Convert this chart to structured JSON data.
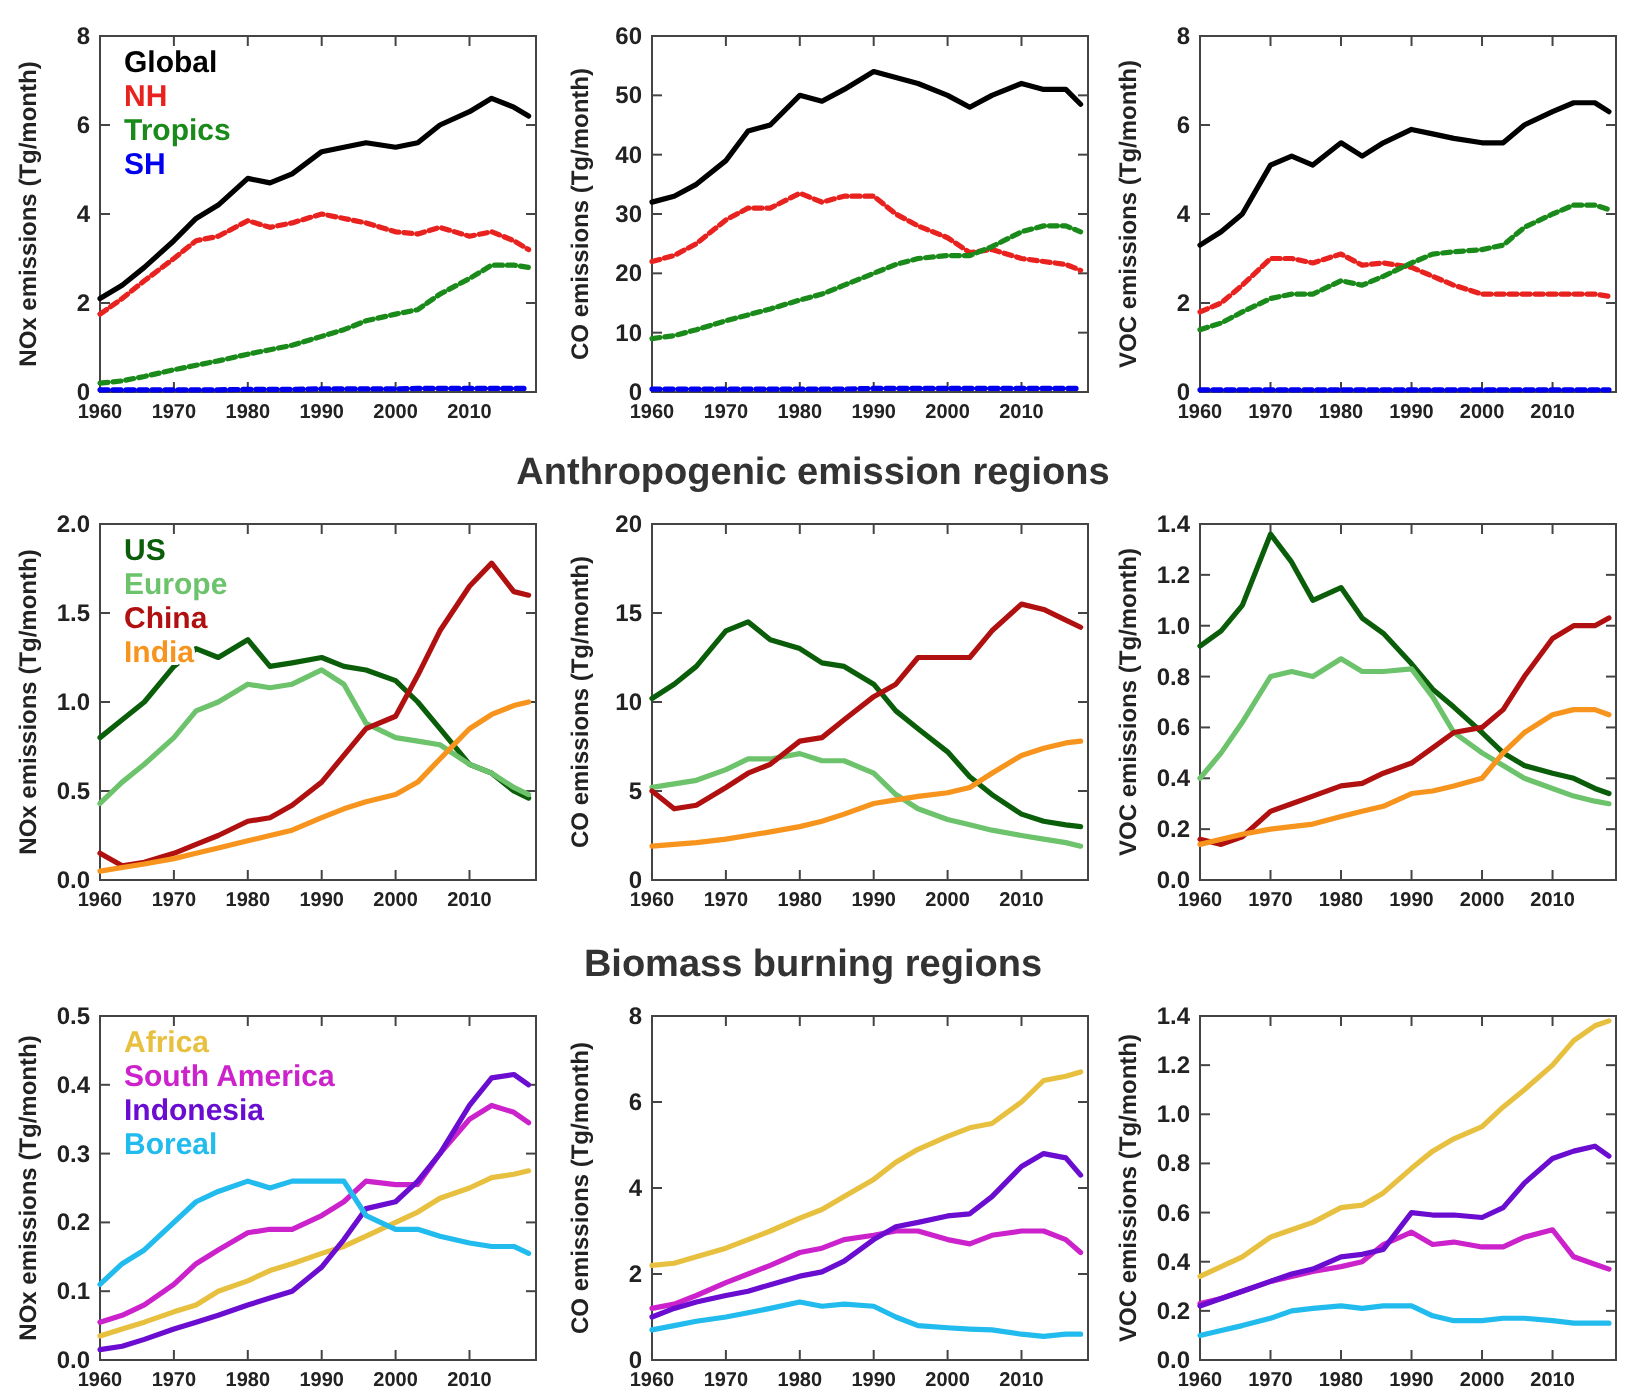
{
  "chart_data": [
    {
      "type": "line",
      "ylabel": "NOx emissions (Tg/month)",
      "x": [
        1960,
        1963,
        1966,
        1970,
        1973,
        1976,
        1980,
        1983,
        1986,
        1990,
        1993,
        1996,
        2000,
        2003,
        2006,
        2010,
        2013,
        2016,
        2018
      ],
      "xlim": [
        1960,
        2019
      ],
      "xticks": [
        1960,
        1970,
        1980,
        1990,
        2000,
        2010
      ],
      "ylim": [
        0,
        8
      ],
      "yticks": [
        0,
        2,
        4,
        6,
        8
      ],
      "legend": "top left",
      "series": [
        {
          "name": "Global",
          "color": "#000000",
          "values": [
            2.1,
            2.4,
            2.8,
            3.4,
            3.9,
            4.2,
            4.8,
            4.7,
            4.9,
            5.4,
            5.5,
            5.6,
            5.5,
            5.6,
            6.0,
            6.3,
            6.6,
            6.4,
            6.2
          ]
        },
        {
          "name": "NH",
          "color": "#e8221f",
          "line_style": "dashed",
          "values": [
            1.75,
            2.1,
            2.5,
            3.0,
            3.4,
            3.5,
            3.85,
            3.7,
            3.8,
            4.0,
            3.9,
            3.8,
            3.6,
            3.55,
            3.7,
            3.5,
            3.6,
            3.4,
            3.2
          ]
        },
        {
          "name": "Tropics",
          "color": "#1a8a1a",
          "line_style": "dashed",
          "values": [
            0.2,
            0.25,
            0.35,
            0.5,
            0.6,
            0.7,
            0.85,
            0.95,
            1.05,
            1.25,
            1.4,
            1.6,
            1.75,
            1.85,
            2.2,
            2.55,
            2.85,
            2.85,
            2.8
          ]
        },
        {
          "name": "SH",
          "color": "#0000ee",
          "line_style": "dashed",
          "values": [
            0.05,
            0.05,
            0.05,
            0.05,
            0.05,
            0.05,
            0.06,
            0.06,
            0.06,
            0.07,
            0.07,
            0.07,
            0.07,
            0.08,
            0.08,
            0.08,
            0.08,
            0.08,
            0.08
          ]
        }
      ]
    },
    {
      "type": "line",
      "ylabel": "CO emissions (Tg/month)",
      "x": [
        1960,
        1963,
        1966,
        1970,
        1973,
        1976,
        1980,
        1983,
        1986,
        1990,
        1993,
        1996,
        2000,
        2003,
        2006,
        2010,
        2013,
        2016,
        2018
      ],
      "xlim": [
        1960,
        2019
      ],
      "xticks": [
        1960,
        1970,
        1980,
        1990,
        2000,
        2010
      ],
      "ylim": [
        0,
        60
      ],
      "yticks": [
        0,
        10,
        20,
        30,
        40,
        50,
        60
      ],
      "series": [
        {
          "color": "#000000",
          "values": [
            32,
            33,
            35,
            39,
            44,
            45,
            50,
            49,
            51,
            54,
            53,
            52,
            50,
            48,
            50,
            52,
            51,
            51,
            48.5
          ]
        },
        {
          "color": "#e8221f",
          "line_style": "dashed",
          "values": [
            22,
            23,
            25,
            29,
            31,
            31,
            33.5,
            32,
            33,
            33,
            30,
            28,
            26,
            23.5,
            24,
            22.5,
            22,
            21.5,
            20.5
          ]
        },
        {
          "color": "#1a8a1a",
          "line_style": "dashed",
          "values": [
            9,
            9.5,
            10.5,
            12,
            13,
            14,
            15.5,
            16.5,
            18,
            20,
            21.5,
            22.5,
            23,
            23,
            24.5,
            27,
            28,
            28,
            27
          ]
        },
        {
          "color": "#0000ee",
          "line_style": "dashed",
          "values": [
            0.5,
            0.5,
            0.5,
            0.5,
            0.5,
            0.5,
            0.5,
            0.5,
            0.5,
            0.6,
            0.6,
            0.6,
            0.6,
            0.6,
            0.6,
            0.6,
            0.6,
            0.6,
            0.6
          ]
        }
      ]
    },
    {
      "type": "line",
      "ylabel": "VOC emissions (Tg/month)",
      "x": [
        1960,
        1963,
        1966,
        1970,
        1973,
        1976,
        1980,
        1983,
        1986,
        1990,
        1993,
        1996,
        2000,
        2003,
        2006,
        2010,
        2013,
        2016,
        2018
      ],
      "xlim": [
        1960,
        2019
      ],
      "xticks": [
        1960,
        1970,
        1980,
        1990,
        2000,
        2010
      ],
      "ylim": [
        0,
        8
      ],
      "yticks": [
        0,
        2,
        4,
        6,
        8
      ],
      "series": [
        {
          "color": "#000000",
          "values": [
            3.3,
            3.6,
            4.0,
            5.1,
            5.3,
            5.1,
            5.6,
            5.3,
            5.6,
            5.9,
            5.8,
            5.7,
            5.6,
            5.6,
            6.0,
            6.3,
            6.5,
            6.5,
            6.3
          ]
        },
        {
          "color": "#e8221f",
          "line_style": "dashed",
          "values": [
            1.8,
            2.0,
            2.4,
            3.0,
            3.0,
            2.9,
            3.1,
            2.85,
            2.9,
            2.8,
            2.6,
            2.4,
            2.2,
            2.2,
            2.2,
            2.2,
            2.2,
            2.2,
            2.15
          ]
        },
        {
          "color": "#1a8a1a",
          "line_style": "dashed",
          "values": [
            1.4,
            1.55,
            1.8,
            2.1,
            2.2,
            2.2,
            2.5,
            2.4,
            2.6,
            2.9,
            3.1,
            3.15,
            3.2,
            3.3,
            3.7,
            4.0,
            4.2,
            4.2,
            4.1
          ]
        },
        {
          "color": "#0000ee",
          "line_style": "dashed",
          "values": [
            0.05,
            0.05,
            0.05,
            0.05,
            0.05,
            0.05,
            0.05,
            0.05,
            0.05,
            0.05,
            0.05,
            0.05,
            0.05,
            0.05,
            0.05,
            0.05,
            0.05,
            0.05,
            0.05
          ]
        }
      ]
    },
    {
      "type": "line",
      "ylabel": "NOx emissions (Tg/month)",
      "x": [
        1960,
        1963,
        1966,
        1970,
        1973,
        1976,
        1980,
        1983,
        1986,
        1990,
        1993,
        1996,
        2000,
        2003,
        2006,
        2010,
        2013,
        2016,
        2018
      ],
      "xlim": [
        1960,
        2019
      ],
      "xticks": [
        1960,
        1970,
        1980,
        1990,
        2000,
        2010
      ],
      "ylim": [
        0,
        2
      ],
      "yticks": [
        {
          "value": 0,
          "label": "0.0"
        },
        {
          "value": 0.5,
          "label": "0.5"
        },
        {
          "value": 1,
          "label": "1.0"
        },
        {
          "value": 1.5,
          "label": "1.5"
        },
        {
          "value": 2,
          "label": "2.0"
        }
      ],
      "legend": "top left",
      "series": [
        {
          "name": "US",
          "color": "#0a5e0a",
          "values": [
            0.8,
            0.9,
            1.0,
            1.2,
            1.3,
            1.25,
            1.35,
            1.2,
            1.22,
            1.25,
            1.2,
            1.18,
            1.12,
            1.0,
            0.85,
            0.65,
            0.6,
            0.5,
            0.46
          ]
        },
        {
          "name": "Europe",
          "color": "#6cc36c",
          "values": [
            0.43,
            0.55,
            0.65,
            0.8,
            0.95,
            1.0,
            1.1,
            1.08,
            1.1,
            1.18,
            1.1,
            0.88,
            0.8,
            0.78,
            0.76,
            0.65,
            0.6,
            0.52,
            0.48
          ]
        },
        {
          "name": "China",
          "color": "#b01010",
          "values": [
            0.15,
            0.08,
            0.1,
            0.15,
            0.2,
            0.25,
            0.33,
            0.35,
            0.42,
            0.55,
            0.7,
            0.85,
            0.92,
            1.15,
            1.4,
            1.65,
            1.78,
            1.62,
            1.6
          ]
        },
        {
          "name": "India",
          "color": "#f7941d",
          "values": [
            0.05,
            0.07,
            0.09,
            0.12,
            0.15,
            0.18,
            0.22,
            0.25,
            0.28,
            0.35,
            0.4,
            0.44,
            0.48,
            0.55,
            0.68,
            0.85,
            0.93,
            0.98,
            1.0
          ]
        }
      ]
    },
    {
      "type": "line",
      "title": "Anthropogenic emission regions",
      "ylabel": "CO emissions (Tg/month)",
      "x": [
        1960,
        1963,
        1966,
        1970,
        1973,
        1976,
        1980,
        1983,
        1986,
        1990,
        1993,
        1996,
        2000,
        2003,
        2006,
        2010,
        2013,
        2016,
        2018
      ],
      "xlim": [
        1960,
        2019
      ],
      "xticks": [
        1960,
        1970,
        1980,
        1990,
        2000,
        2010
      ],
      "ylim": [
        0,
        20
      ],
      "yticks": [
        0,
        5,
        10,
        15,
        20
      ],
      "series": [
        {
          "color": "#0a5e0a",
          "values": [
            10.2,
            11,
            12,
            14,
            14.5,
            13.5,
            13,
            12.2,
            12,
            11,
            9.5,
            8.5,
            7.2,
            5.8,
            4.8,
            3.7,
            3.3,
            3.1,
            3.0
          ]
        },
        {
          "color": "#6cc36c",
          "values": [
            5.2,
            5.4,
            5.6,
            6.2,
            6.8,
            6.8,
            7.1,
            6.7,
            6.7,
            6.0,
            4.8,
            4.0,
            3.4,
            3.1,
            2.8,
            2.5,
            2.3,
            2.1,
            1.9
          ]
        },
        {
          "color": "#b01010",
          "values": [
            5,
            4,
            4.2,
            5.2,
            6,
            6.5,
            7.8,
            8,
            9,
            10.3,
            11,
            12.5,
            12.5,
            12.5,
            14,
            15.5,
            15.2,
            14.6,
            14.2
          ]
        },
        {
          "color": "#f7941d",
          "values": [
            1.9,
            2,
            2.1,
            2.3,
            2.5,
            2.7,
            3,
            3.3,
            3.7,
            4.3,
            4.5,
            4.7,
            4.9,
            5.2,
            6,
            7,
            7.4,
            7.7,
            7.8
          ]
        }
      ]
    },
    {
      "type": "line",
      "ylabel": "VOC emissions (Tg/month)",
      "x": [
        1960,
        1963,
        1966,
        1970,
        1973,
        1976,
        1980,
        1983,
        1986,
        1990,
        1993,
        1996,
        2000,
        2003,
        2006,
        2010,
        2013,
        2016,
        2018
      ],
      "xlim": [
        1960,
        2019
      ],
      "xticks": [
        1960,
        1970,
        1980,
        1990,
        2000,
        2010
      ],
      "ylim": [
        0,
        1.4
      ],
      "yticks": [
        {
          "value": 0,
          "label": "0.0"
        },
        {
          "value": 0.2,
          "label": "0.2"
        },
        {
          "value": 0.4,
          "label": "0.4"
        },
        {
          "value": 0.6,
          "label": "0.6"
        },
        {
          "value": 0.8,
          "label": "0.8"
        },
        {
          "value": 1,
          "label": "1.0"
        },
        {
          "value": 1.2,
          "label": "1.2"
        },
        {
          "value": 1.4,
          "label": "1.4"
        }
      ],
      "series": [
        {
          "color": "#0a5e0a",
          "values": [
            0.92,
            0.98,
            1.08,
            1.36,
            1.25,
            1.1,
            1.15,
            1.03,
            0.97,
            0.85,
            0.75,
            0.68,
            0.58,
            0.5,
            0.45,
            0.42,
            0.4,
            0.36,
            0.34
          ]
        },
        {
          "color": "#6cc36c",
          "values": [
            0.4,
            0.5,
            0.62,
            0.8,
            0.82,
            0.8,
            0.87,
            0.82,
            0.82,
            0.83,
            0.72,
            0.58,
            0.5,
            0.45,
            0.4,
            0.36,
            0.33,
            0.31,
            0.3
          ]
        },
        {
          "color": "#b01010",
          "values": [
            0.16,
            0.14,
            0.17,
            0.27,
            0.3,
            0.33,
            0.37,
            0.38,
            0.42,
            0.46,
            0.52,
            0.58,
            0.6,
            0.67,
            0.8,
            0.95,
            1.0,
            1.0,
            1.03
          ]
        },
        {
          "color": "#f7941d",
          "values": [
            0.14,
            0.16,
            0.18,
            0.2,
            0.21,
            0.22,
            0.25,
            0.27,
            0.29,
            0.34,
            0.35,
            0.37,
            0.4,
            0.5,
            0.58,
            0.65,
            0.67,
            0.67,
            0.65
          ]
        }
      ]
    },
    {
      "type": "line",
      "ylabel": "NOx emissions (Tg/month)",
      "x": [
        1960,
        1963,
        1966,
        1970,
        1973,
        1976,
        1980,
        1983,
        1986,
        1990,
        1993,
        1996,
        2000,
        2003,
        2006,
        2010,
        2013,
        2016,
        2018
      ],
      "xlim": [
        1960,
        2019
      ],
      "xticks": [
        1960,
        1970,
        1980,
        1990,
        2000,
        2010
      ],
      "ylim": [
        0,
        0.5
      ],
      "yticks": [
        {
          "value": 0,
          "label": "0.0"
        },
        0.1,
        0.2,
        0.3,
        0.4,
        0.5
      ],
      "legend": "top left",
      "series": [
        {
          "name": "Africa",
          "color": "#e8c040",
          "values": [
            0.035,
            0.045,
            0.055,
            0.07,
            0.08,
            0.1,
            0.115,
            0.13,
            0.14,
            0.155,
            0.165,
            0.18,
            0.2,
            0.215,
            0.235,
            0.25,
            0.265,
            0.27,
            0.275
          ]
        },
        {
          "name": "South America",
          "color": "#cc22cc",
          "values": [
            0.055,
            0.065,
            0.08,
            0.11,
            0.14,
            0.16,
            0.185,
            0.19,
            0.19,
            0.21,
            0.23,
            0.26,
            0.255,
            0.255,
            0.3,
            0.35,
            0.37,
            0.36,
            0.345
          ]
        },
        {
          "name": "Indonesia",
          "color": "#6a0dd0",
          "values": [
            0.015,
            0.02,
            0.03,
            0.045,
            0.055,
            0.065,
            0.08,
            0.09,
            0.1,
            0.135,
            0.175,
            0.22,
            0.23,
            0.26,
            0.3,
            0.37,
            0.41,
            0.415,
            0.4
          ]
        },
        {
          "name": "Boreal",
          "color": "#22bbee",
          "values": [
            0.11,
            0.14,
            0.16,
            0.2,
            0.23,
            0.245,
            0.26,
            0.25,
            0.26,
            0.26,
            0.26,
            0.21,
            0.19,
            0.19,
            0.18,
            0.17,
            0.165,
            0.165,
            0.155
          ]
        }
      ]
    },
    {
      "type": "line",
      "title": "Biomass burning regions",
      "ylabel": "CO emissions (Tg/month)",
      "x": [
        1960,
        1963,
        1966,
        1970,
        1973,
        1976,
        1980,
        1983,
        1986,
        1990,
        1993,
        1996,
        2000,
        2003,
        2006,
        2010,
        2013,
        2016,
        2018
      ],
      "xlim": [
        1960,
        2019
      ],
      "xticks": [
        1960,
        1970,
        1980,
        1990,
        2000,
        2010
      ],
      "ylim": [
        0,
        8
      ],
      "yticks": [
        0,
        2,
        4,
        6,
        8
      ],
      "series": [
        {
          "color": "#e8c040",
          "values": [
            2.2,
            2.25,
            2.4,
            2.6,
            2.8,
            3.0,
            3.3,
            3.5,
            3.8,
            4.2,
            4.6,
            4.9,
            5.2,
            5.4,
            5.5,
            6.0,
            6.5,
            6.6,
            6.7
          ]
        },
        {
          "color": "#cc22cc",
          "values": [
            1.2,
            1.3,
            1.5,
            1.8,
            2.0,
            2.2,
            2.5,
            2.6,
            2.8,
            2.9,
            3.0,
            3.0,
            2.8,
            2.7,
            2.9,
            3.0,
            3.0,
            2.8,
            2.5
          ]
        },
        {
          "color": "#6a0dd0",
          "values": [
            1.0,
            1.2,
            1.35,
            1.5,
            1.6,
            1.75,
            1.95,
            2.05,
            2.3,
            2.8,
            3.1,
            3.2,
            3.35,
            3.4,
            3.8,
            4.5,
            4.8,
            4.7,
            4.3
          ]
        },
        {
          "color": "#22bbee",
          "values": [
            0.7,
            0.8,
            0.9,
            1.0,
            1.1,
            1.2,
            1.35,
            1.25,
            1.3,
            1.25,
            1.0,
            0.8,
            0.75,
            0.72,
            0.7,
            0.6,
            0.55,
            0.6,
            0.6
          ]
        }
      ]
    },
    {
      "type": "line",
      "ylabel": "VOC emissions (Tg/month)",
      "x": [
        1960,
        1963,
        1966,
        1970,
        1973,
        1976,
        1980,
        1983,
        1986,
        1990,
        1993,
        1996,
        2000,
        2003,
        2006,
        2010,
        2013,
        2016,
        2018
      ],
      "xlim": [
        1960,
        2019
      ],
      "xticks": [
        1960,
        1970,
        1980,
        1990,
        2000,
        2010
      ],
      "ylim": [
        0,
        1.4
      ],
      "yticks": [
        {
          "value": 0,
          "label": "0.0"
        },
        {
          "value": 0.2,
          "label": "0.2"
        },
        {
          "value": 0.4,
          "label": "0.4"
        },
        {
          "value": 0.6,
          "label": "0.6"
        },
        {
          "value": 0.8,
          "label": "0.8"
        },
        {
          "value": 1,
          "label": "1.0"
        },
        {
          "value": 1.2,
          "label": "1.2"
        },
        {
          "value": 1.4,
          "label": "1.4"
        }
      ],
      "series": [
        {
          "color": "#e8c040",
          "values": [
            0.34,
            0.38,
            0.42,
            0.5,
            0.53,
            0.56,
            0.62,
            0.63,
            0.68,
            0.78,
            0.85,
            0.9,
            0.95,
            1.03,
            1.1,
            1.2,
            1.3,
            1.36,
            1.38
          ]
        },
        {
          "color": "#cc22cc",
          "values": [
            0.23,
            0.25,
            0.28,
            0.32,
            0.34,
            0.36,
            0.38,
            0.4,
            0.47,
            0.52,
            0.47,
            0.48,
            0.46,
            0.46,
            0.5,
            0.53,
            0.42,
            0.39,
            0.37
          ]
        },
        {
          "color": "#6a0dd0",
          "values": [
            0.22,
            0.25,
            0.28,
            0.32,
            0.35,
            0.37,
            0.42,
            0.43,
            0.45,
            0.6,
            0.59,
            0.59,
            0.58,
            0.62,
            0.72,
            0.82,
            0.85,
            0.87,
            0.83
          ]
        },
        {
          "color": "#22bbee",
          "values": [
            0.1,
            0.12,
            0.14,
            0.17,
            0.2,
            0.21,
            0.22,
            0.21,
            0.22,
            0.22,
            0.18,
            0.16,
            0.16,
            0.17,
            0.17,
            0.16,
            0.15,
            0.15,
            0.15
          ]
        }
      ]
    }
  ]
}
